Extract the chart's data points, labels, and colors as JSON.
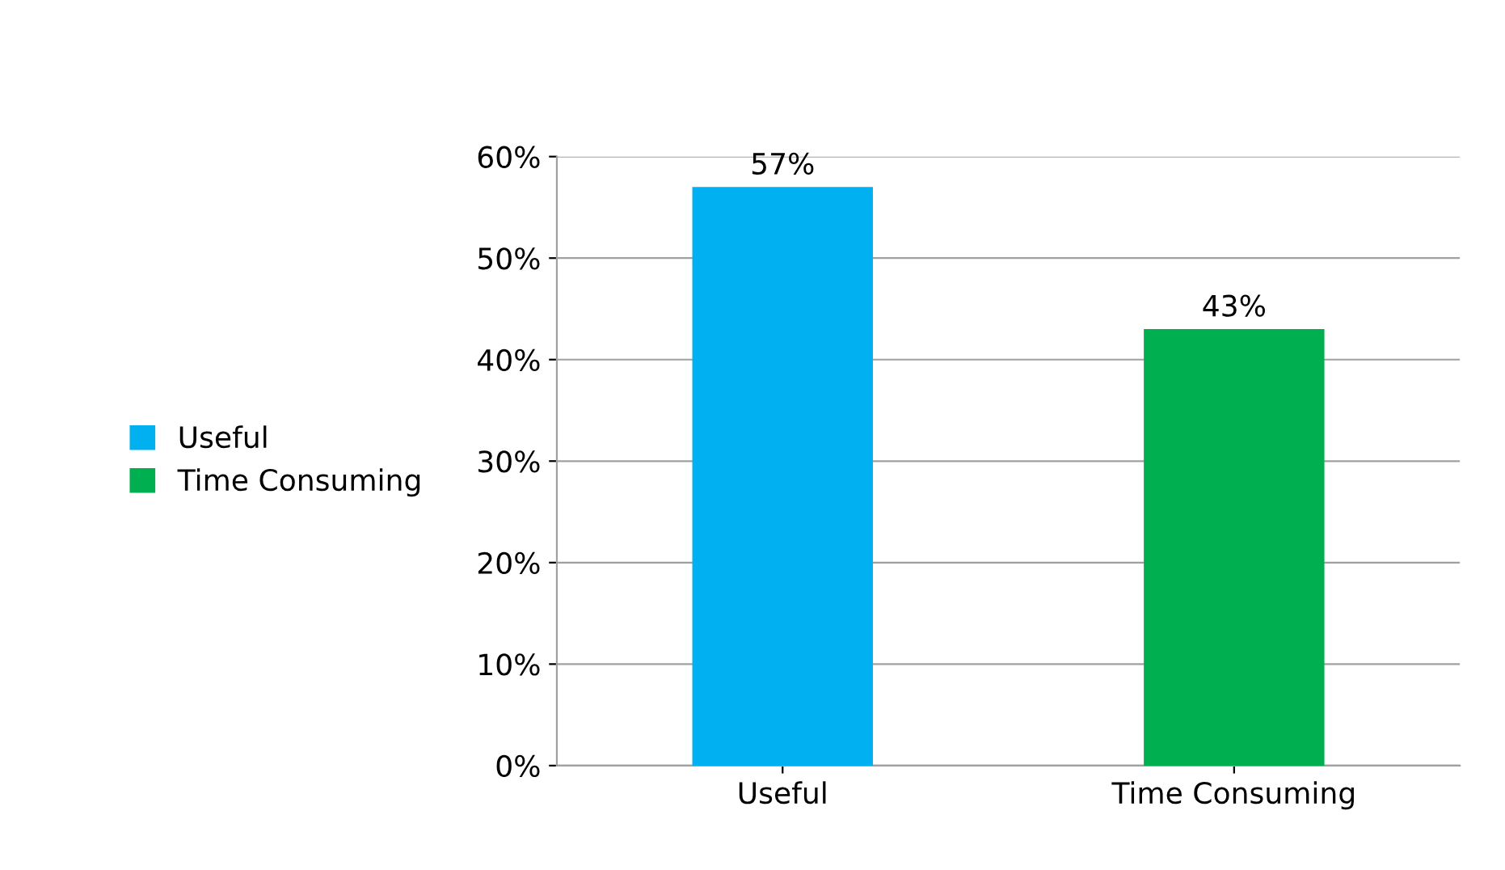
{
  "chart_data": {
    "type": "bar",
    "categories": [
      "Useful",
      "Time Consuming"
    ],
    "series": [
      {
        "name": "Useful",
        "color": "#00b0f0",
        "values": [
          57,
          null
        ],
        "value_labels": [
          "57%",
          null
        ]
      },
      {
        "name": "Time Consuming",
        "color": "#00b050",
        "values": [
          null,
          43
        ],
        "value_labels": [
          null,
          "43%"
        ]
      }
    ],
    "ylim": [
      0,
      60
    ],
    "yticks": [
      {
        "value": 0,
        "label": "0%"
      },
      {
        "value": 10,
        "label": "10%"
      },
      {
        "value": 20,
        "label": "20%"
      },
      {
        "value": 30,
        "label": "30%"
      },
      {
        "value": 40,
        "label": "40%"
      },
      {
        "value": 50,
        "label": "50%"
      },
      {
        "value": 60,
        "label": "60%"
      }
    ],
    "grid": "y",
    "legend": "left"
  }
}
